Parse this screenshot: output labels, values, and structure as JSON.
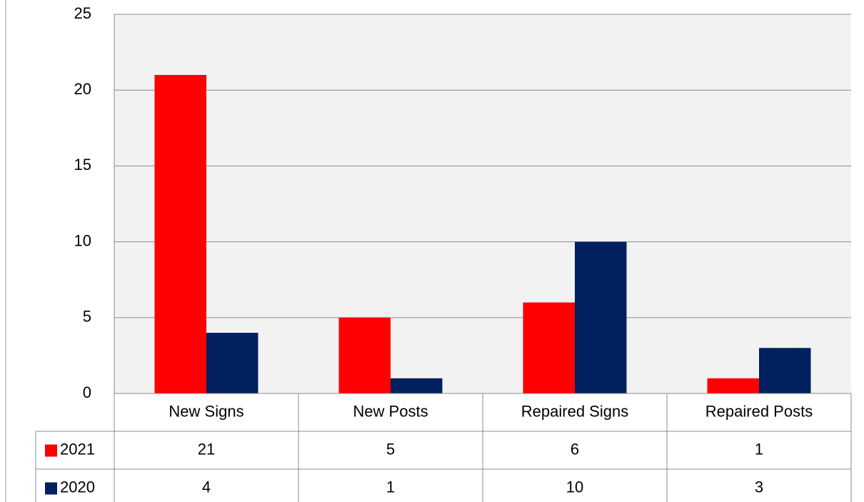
{
  "chart_data": {
    "type": "bar",
    "categories": [
      "New Signs",
      "New Posts",
      "Repaired Signs",
      "Repaired Posts"
    ],
    "series": [
      {
        "name": "2021",
        "color": "#ff0000",
        "values": [
          21,
          5,
          6,
          1
        ]
      },
      {
        "name": "2020",
        "color": "#002060",
        "values": [
          4,
          1,
          10,
          3
        ]
      }
    ],
    "ylim": [
      0,
      25
    ],
    "yticks": [
      0,
      5,
      10,
      15,
      20,
      25
    ],
    "grid": true,
    "data_table": true
  }
}
